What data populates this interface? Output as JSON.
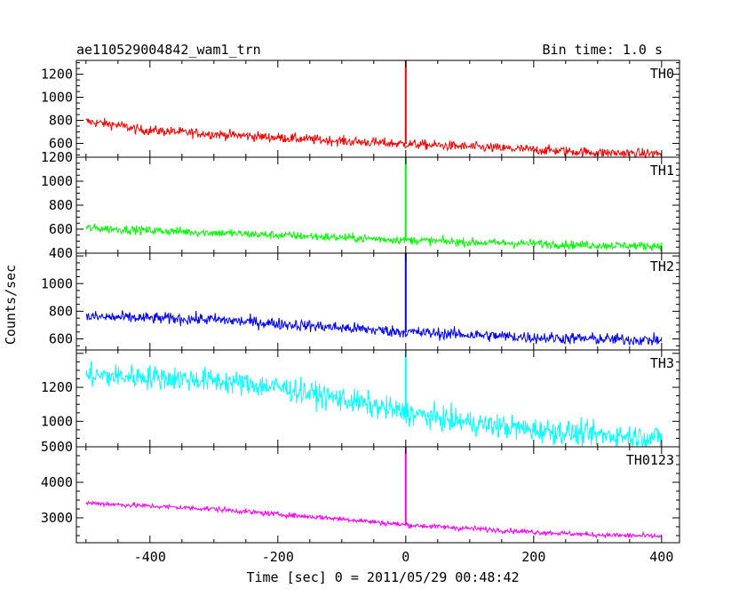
{
  "header": {
    "title": "ae110529004842_wam1_trn",
    "bin_time": "Bin time: 1.0 s"
  },
  "chart_data": {
    "type": "line",
    "title": "ae110529004842_wam1_trn",
    "xlabel": "Time [sec] 0 = 2011/05/29 00:48:42",
    "ylabel": "Counts/sec",
    "xlim": [
      -515,
      428
    ],
    "x_ticks": [
      -400,
      -200,
      0,
      200,
      400
    ],
    "x_start": -500,
    "x_end": 400,
    "panels": [
      {
        "name": "TH0",
        "color": "#ff0000",
        "ylim": [
          480,
          1320
        ],
        "y_ticks": [
          600,
          800,
          1000,
          1200
        ],
        "trend": [
          [
            -500,
            790
          ],
          [
            -450,
            760
          ],
          [
            -420,
            720
          ],
          [
            -300,
            680
          ],
          [
            -200,
            650
          ],
          [
            -100,
            620
          ],
          [
            0,
            595
          ],
          [
            100,
            570
          ],
          [
            200,
            545
          ],
          [
            300,
            520
          ],
          [
            400,
            510
          ]
        ],
        "noise": 30,
        "spike": {
          "x": 0,
          "y": 1320
        }
      },
      {
        "name": "TH1",
        "color": "#00ff00",
        "ylim": [
          400,
          1200
        ],
        "y_ticks": [
          400,
          600,
          800,
          1000,
          1200
        ],
        "trend": [
          [
            -500,
            610
          ],
          [
            -400,
            590
          ],
          [
            -300,
            570
          ],
          [
            -200,
            550
          ],
          [
            -100,
            530
          ],
          [
            0,
            510
          ],
          [
            100,
            490
          ],
          [
            200,
            480
          ],
          [
            300,
            465
          ],
          [
            400,
            460
          ]
        ],
        "noise": 25,
        "spike": {
          "x": 0,
          "y": 1200
        }
      },
      {
        "name": "TH2",
        "color": "#0000ff",
        "ylim": [
          520,
          1220
        ],
        "y_ticks": [
          600,
          800,
          1000
        ],
        "trend": [
          [
            -500,
            760
          ],
          [
            -400,
            750
          ],
          [
            -300,
            740
          ],
          [
            -200,
            710
          ],
          [
            -100,
            680
          ],
          [
            0,
            650
          ],
          [
            100,
            630
          ],
          [
            200,
            610
          ],
          [
            300,
            600
          ],
          [
            400,
            590
          ]
        ],
        "noise": 30,
        "spike": {
          "x": 0,
          "y": 1220
        }
      },
      {
        "name": "TH3",
        "color": "#00ffff",
        "ylim": [
          850,
          1420
        ],
        "y_ticks": [
          1000,
          1200
        ],
        "trend": [
          [
            -500,
            1270
          ],
          [
            -400,
            1260
          ],
          [
            -300,
            1240
          ],
          [
            -200,
            1200
          ],
          [
            -100,
            1130
          ],
          [
            0,
            1050
          ],
          [
            100,
            990
          ],
          [
            200,
            950
          ],
          [
            300,
            920
          ],
          [
            400,
            905
          ]
        ],
        "noise": 50,
        "spike": {
          "x": 0,
          "y": 1420
        }
      },
      {
        "name": "TH0123",
        "color": "#ff00ff",
        "ylim": [
          2300,
          5000
        ],
        "y_ticks": [
          3000,
          4000,
          5000
        ],
        "trend": [
          [
            -500,
            3420
          ],
          [
            -400,
            3330
          ],
          [
            -300,
            3250
          ],
          [
            -200,
            3100
          ],
          [
            -100,
            2970
          ],
          [
            0,
            2800
          ],
          [
            100,
            2700
          ],
          [
            200,
            2600
          ],
          [
            300,
            2520
          ],
          [
            400,
            2480
          ]
        ],
        "noise": 50,
        "spike": {
          "x": 0,
          "y": 5000
        }
      }
    ]
  }
}
